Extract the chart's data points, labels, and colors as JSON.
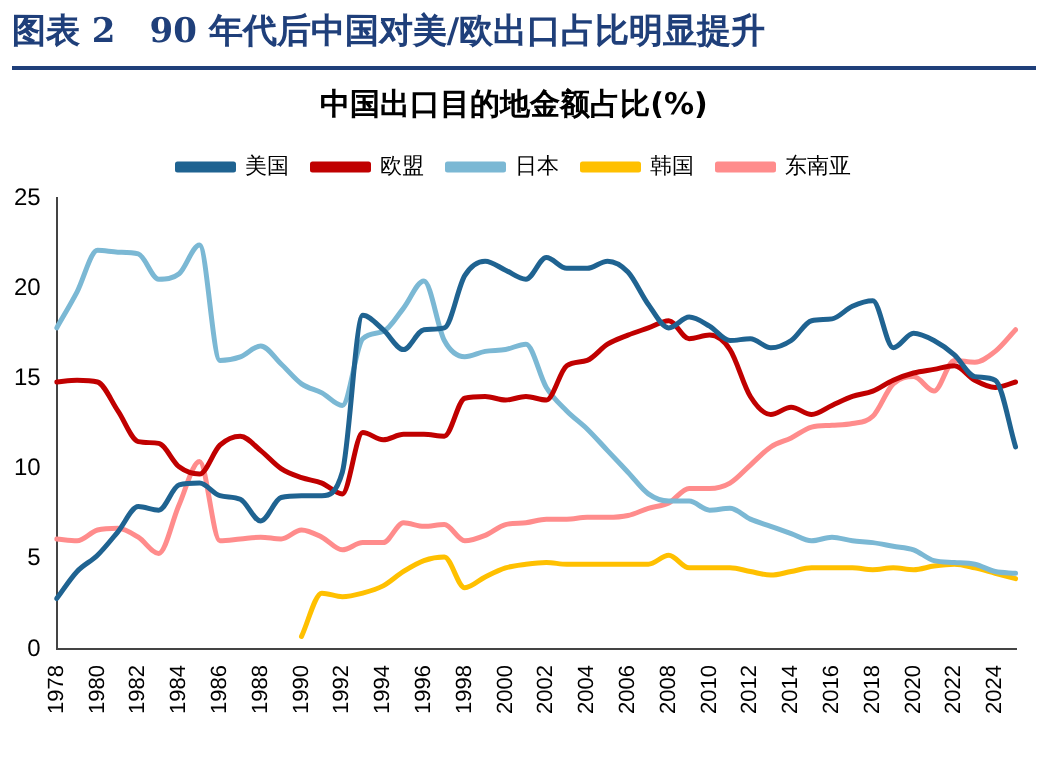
{
  "chart_data": {
    "type": "line",
    "title": "图表 2　90 年代后中国对美/欧出口占比明显提升",
    "subtitle": "中国出口目的地金额占比(%)",
    "categories": [
      "1978",
      null,
      "1980",
      null,
      "1982",
      null,
      "1984",
      null,
      "1986",
      null,
      "1988",
      null,
      "1990",
      null,
      "1992",
      null,
      "1994",
      null,
      "1996",
      null,
      "1998",
      null,
      "2000",
      null,
      "2002",
      null,
      "2004",
      null,
      "2006",
      null,
      "2008",
      null,
      "2010",
      null,
      "2012",
      null,
      "2014",
      null,
      "2016",
      null,
      "2018",
      null,
      "2020",
      null,
      "2022",
      null,
      "2024",
      null
    ],
    "series": [
      {
        "name": "美国",
        "color": "#1f6391",
        "values": [
          2.8,
          4.3,
          5.2,
          6.5,
          7.9,
          7.7,
          9.1,
          9.2,
          8.5,
          8.3,
          7.1,
          8.4,
          8.5,
          8.5,
          9.8,
          18.5,
          17.7,
          16.6,
          17.7,
          17.8,
          20.7,
          21.5,
          21.0,
          20.5,
          21.7,
          21.1,
          21.1,
          21.5,
          20.9,
          19.1,
          17.8,
          18.4,
          17.9,
          17.1,
          17.2,
          16.7,
          17.1,
          18.2,
          18.3,
          19.0,
          19.3,
          16.7,
          17.5,
          17.1,
          16.3,
          15.1,
          14.9,
          11.2
        ]
      },
      {
        "name": "欧盟",
        "color": "#c00000",
        "values": [
          14.8,
          14.9,
          14.8,
          13.2,
          11.5,
          11.4,
          10.1,
          9.7,
          11.3,
          11.8,
          11.0,
          10.0,
          9.5,
          9.2,
          8.6,
          12.0,
          11.6,
          11.9,
          11.9,
          11.8,
          13.9,
          14.0,
          13.8,
          14.0,
          13.8,
          15.7,
          16.0,
          16.9,
          17.4,
          17.8,
          18.2,
          17.2,
          17.4,
          16.6,
          14.0,
          13.0,
          13.4,
          13.0,
          13.5,
          14.0,
          14.3,
          14.9,
          15.3,
          15.5,
          15.7,
          14.9,
          14.5,
          14.8
        ]
      },
      {
        "name": "日本",
        "color": "#7bb8d4",
        "values": [
          17.8,
          19.8,
          22.1,
          22.0,
          21.9,
          20.5,
          20.8,
          22.4,
          16.0,
          16.2,
          16.8,
          15.8,
          14.7,
          14.2,
          13.5,
          17.2,
          17.6,
          18.9,
          20.4,
          17.1,
          16.2,
          16.5,
          16.6,
          16.9,
          14.5,
          13.2,
          12.2,
          11.0,
          9.8,
          8.6,
          8.2,
          8.2,
          7.7,
          7.8,
          7.2,
          6.8,
          6.4,
          6.0,
          6.2,
          6.0,
          5.9,
          5.7,
          5.5,
          4.9,
          4.8,
          4.7,
          4.3,
          4.2
        ]
      },
      {
        "name": "韩国",
        "color": "#ffc000",
        "values": [
          null,
          null,
          null,
          null,
          null,
          null,
          null,
          null,
          null,
          null,
          null,
          null,
          0.7,
          3.1,
          2.9,
          3.1,
          3.5,
          4.3,
          4.9,
          5.1,
          3.4,
          4.0,
          4.5,
          4.7,
          4.8,
          4.7,
          4.7,
          4.7,
          4.7,
          4.7,
          5.2,
          4.5,
          4.5,
          4.5,
          4.3,
          4.1,
          4.3,
          4.5,
          4.5,
          4.5,
          4.4,
          4.5,
          4.4,
          4.6,
          4.7,
          4.5,
          4.2,
          3.9
        ]
      },
      {
        "name": "东南亚",
        "color": "#ff8c8c",
        "values": [
          6.1,
          6.0,
          6.6,
          6.7,
          6.2,
          5.3,
          8.0,
          10.4,
          6.0,
          6.1,
          6.2,
          6.1,
          6.6,
          6.2,
          5.5,
          5.9,
          5.9,
          7.0,
          6.8,
          6.9,
          6.0,
          6.3,
          6.9,
          7.0,
          7.2,
          7.2,
          7.3,
          7.3,
          7.4,
          7.8,
          8.1,
          8.9,
          8.9,
          9.2,
          10.2,
          11.2,
          11.7,
          12.3,
          12.4,
          12.5,
          12.9,
          14.7,
          15.1,
          14.3,
          16.0,
          15.9,
          16.5,
          17.7
        ]
      }
    ],
    "ylim": [
      0,
      25
    ],
    "yticks": [
      0,
      5,
      10,
      15,
      20,
      25
    ],
    "grid": false,
    "legend": "top",
    "marker": "none",
    "line_style": "solid"
  }
}
